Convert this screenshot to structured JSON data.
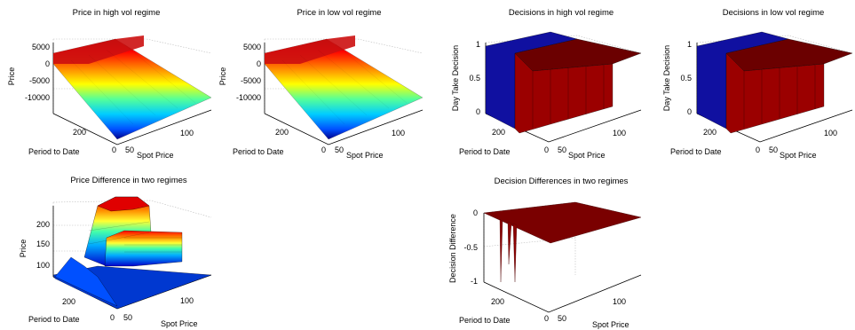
{
  "figure": {
    "panels": [
      {
        "title": "Price in high vol regime",
        "zlabel": "Price",
        "xlabel": "Period to Date",
        "ylabel": "Spot Price",
        "zticks": [
          "5000",
          "0",
          "-5000",
          "-10000"
        ],
        "xticks": [
          "200",
          "0"
        ],
        "yticks": [
          "50",
          "100"
        ]
      },
      {
        "title": "Price in low vol regime",
        "zlabel": "Price",
        "xlabel": "Period to Date",
        "ylabel": "Spot Price",
        "zticks": [
          "5000",
          "0",
          "-5000",
          "-10000"
        ],
        "xticks": [
          "200",
          "0"
        ],
        "yticks": [
          "50",
          "100"
        ]
      },
      {
        "title": "Decisions in high vol regime",
        "zlabel": "Day Take Decision",
        "xlabel": "Period to Date",
        "ylabel": "Spot Price",
        "zticks": [
          "1",
          "0.5",
          "0"
        ],
        "xticks": [
          "200",
          "0"
        ],
        "yticks": [
          "50",
          "100"
        ]
      },
      {
        "title": "Decisions in low vol regime",
        "zlabel": "Day Take Decision",
        "xlabel": "Period to Date",
        "ylabel": "Spot Price",
        "zticks": [
          "1",
          "0.5",
          "0"
        ],
        "xticks": [
          "200",
          "0"
        ],
        "yticks": [
          "50",
          "100"
        ]
      },
      {
        "title": "Price Difference in two regimes",
        "zlabel": "Price",
        "xlabel": "Period to Date",
        "ylabel": "Spot Price",
        "zticks": [
          "200",
          "150",
          "100"
        ],
        "xticks": [
          "200",
          "0"
        ],
        "yticks": [
          "50",
          "100"
        ]
      },
      {
        "title": "Decision Differences in two regimes",
        "zlabel": "Decision Difference",
        "xlabel": "Period to Date",
        "ylabel": "Spot Price",
        "zticks": [
          "0",
          "-0.5",
          "-1"
        ],
        "xticks": [
          "200",
          "0"
        ],
        "yticks": [
          "50",
          "100"
        ]
      }
    ]
  },
  "chart_data": [
    {
      "type": "surface",
      "title": "Price in high vol regime",
      "xlabel": "Period to Date",
      "ylabel": "Spot Price",
      "zlabel": "Price",
      "zlim": [
        -12000,
        6000
      ],
      "colormap": "jet",
      "series": [
        {
          "name": "",
          "spot_price": [
            30,
            50,
            70,
            90,
            110,
            130
          ],
          "price": [
            4500,
            3000,
            -1500,
            -5500,
            -9500,
            -12500
          ]
        }
      ]
    },
    {
      "type": "surface",
      "title": "Price in low vol regime",
      "xlabel": "Period to Date",
      "ylabel": "Spot Price",
      "zlabel": "Price",
      "zlim": [
        -12000,
        6000
      ],
      "colormap": "jet",
      "series": [
        {
          "name": "",
          "spot_price": [
            30,
            50,
            70,
            90,
            110,
            130
          ],
          "price": [
            4500,
            3000,
            -1500,
            -5500,
            -9500,
            -12500
          ]
        }
      ]
    },
    {
      "type": "surface",
      "title": "Decisions in high vol regime",
      "xlabel": "Period to Date",
      "ylabel": "Spot Price",
      "zlabel": "Day Take Decision",
      "zlim": [
        0,
        1
      ],
      "colormap": "jet",
      "series": [
        {
          "name": "",
          "spot_price": [
            30,
            50,
            70,
            90,
            110,
            130
          ],
          "decision": [
            0,
            1,
            1,
            1,
            1,
            1
          ]
        }
      ]
    },
    {
      "type": "surface",
      "title": "Decisions in low vol regime",
      "xlabel": "Period to Date",
      "ylabel": "Spot Price",
      "zlabel": "Day Take Decision",
      "zlim": [
        0,
        1
      ],
      "colormap": "jet",
      "series": [
        {
          "name": "",
          "spot_price": [
            30,
            50,
            70,
            90,
            110,
            130
          ],
          "decision": [
            0,
            1,
            1,
            1,
            1,
            1
          ]
        }
      ]
    },
    {
      "type": "surface",
      "title": "Price Difference in two regimes",
      "xlabel": "Period to Date",
      "ylabel": "Spot Price",
      "zlabel": "Price",
      "zlim": [
        60,
        250
      ],
      "colormap": "jet",
      "series": [
        {
          "name": "",
          "spot_price": [
            30,
            40,
            50,
            60,
            70,
            80,
            90,
            100,
            110,
            120,
            130
          ],
          "price_difference": [
            70,
            150,
            240,
            235,
            180,
            175,
            100,
            80,
            72,
            70,
            70
          ]
        }
      ]
    },
    {
      "type": "surface",
      "title": "Decision Differences in two regimes",
      "xlabel": "Period to Date",
      "ylabel": "Spot Price",
      "zlabel": "Decision Difference",
      "zlim": [
        -1,
        0
      ],
      "colormap": "jet",
      "series": [
        {
          "name": "",
          "spot_price": [
            30,
            40,
            50,
            60,
            70,
            80,
            90,
            100,
            110,
            120,
            130
          ],
          "decision_difference": [
            0,
            -1,
            -0.2,
            -1,
            0,
            0,
            0,
            0,
            0,
            0,
            0
          ]
        }
      ]
    }
  ]
}
